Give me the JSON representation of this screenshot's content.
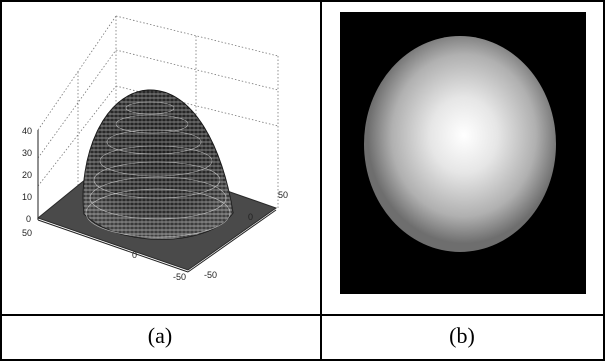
{
  "figure": {
    "panels": [
      {
        "caption": "(a)",
        "type": "3d-surface-plot",
        "z_ticks": [
          "40",
          "30",
          "20",
          "10",
          "0"
        ],
        "x_ticks": [
          "50",
          "0",
          "-50"
        ],
        "y_ticks": [
          "50",
          "0",
          "-50"
        ]
      },
      {
        "caption": "(b)",
        "type": "depth-image"
      }
    ]
  }
}
